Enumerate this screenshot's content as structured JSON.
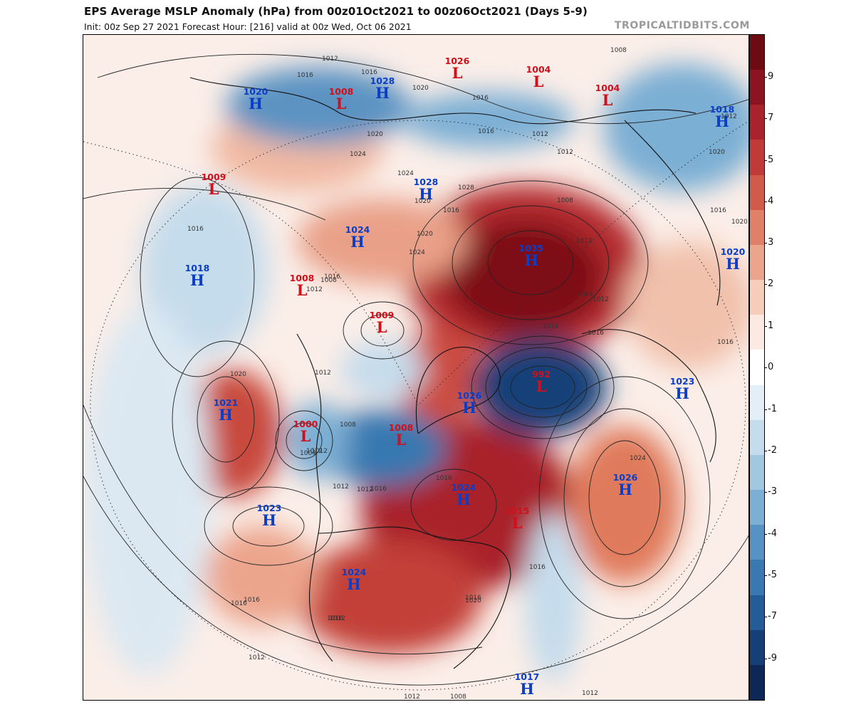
{
  "header": {
    "title": "EPS Average MSLP Anomaly (hPa) from 00z01Oct2021 to 00z06Oct2021 (Days 5-9)",
    "subtitle": "Init: 00z Sep 27 2021   Forecast Hour: [216]   valid at 00z Wed, Oct 06 2021",
    "brand": "TROPICALTIDBITS.COM"
  },
  "colorbar": {
    "labels": [
      "9",
      "7",
      "5",
      "4",
      "3",
      "2",
      "1",
      "0",
      "-1",
      "-2",
      "-3",
      "-4",
      "-5",
      "-7",
      "-9"
    ],
    "colors": [
      "#6d0a12",
      "#8c1420",
      "#a8232b",
      "#bf3a38",
      "#d15a4b",
      "#e08068",
      "#eca58d",
      "#f6ccbb",
      "#fbe9e2",
      "#ffffff",
      "#e3eef6",
      "#c5dcec",
      "#a2c7e1",
      "#7cafd4",
      "#5693c4",
      "#3978b0",
      "#245c98",
      "#163f78",
      "#0d2856"
    ]
  },
  "pressure_systems": [
    {
      "type": "H",
      "value": "1020"
    },
    {
      "type": "L",
      "value": "1008"
    },
    {
      "type": "H",
      "value": "1028"
    },
    {
      "type": "L",
      "value": "1026"
    },
    {
      "type": "L",
      "value": "1004"
    },
    {
      "type": "L",
      "value": "1004"
    },
    {
      "type": "H",
      "value": "1018"
    },
    {
      "type": "L",
      "value": "1009"
    },
    {
      "type": "H",
      "value": "1028"
    },
    {
      "type": "H",
      "value": "1024"
    },
    {
      "type": "H",
      "value": "1018"
    },
    {
      "type": "L",
      "value": "1008"
    },
    {
      "type": "H",
      "value": "1035"
    },
    {
      "type": "H",
      "value": "1020"
    },
    {
      "type": "L",
      "value": "1009"
    },
    {
      "type": "L",
      "value": "992"
    },
    {
      "type": "H",
      "value": "1023"
    },
    {
      "type": "H",
      "value": "1021"
    },
    {
      "type": "L",
      "value": "1000"
    },
    {
      "type": "L",
      "value": "1008"
    },
    {
      "type": "H",
      "value": "1026"
    },
    {
      "type": "H",
      "value": "1026"
    },
    {
      "type": "H",
      "value": "1024"
    },
    {
      "type": "H",
      "value": "1023"
    },
    {
      "type": "L",
      "value": "1015"
    },
    {
      "type": "H",
      "value": "1024"
    },
    {
      "type": "H",
      "value": "1017"
    }
  ],
  "isobar_labels": [
    "1012",
    "1008",
    "1016",
    "1016",
    "1020",
    "1016",
    "1020",
    "1024",
    "1016",
    "1012",
    "1012",
    "1008",
    "1012",
    "1024",
    "1028",
    "1020",
    "1024",
    "1016",
    "1020",
    "1008",
    "1012",
    "1016",
    "1016",
    "1012",
    "1016",
    "1024",
    "1020",
    "1016",
    "1020",
    "1016",
    "1012",
    "1016",
    "1020",
    "1012",
    "1016",
    "1012",
    "1012",
    "1024",
    "1004",
    "1008",
    "1012",
    "1016",
    "1012",
    "1016",
    "1020",
    "1016",
    "1016",
    "1012",
    "1016",
    "1016",
    "1012",
    "1012",
    "1008",
    "1012"
  ],
  "legend": {
    "anomaly_units": "hPa"
  }
}
